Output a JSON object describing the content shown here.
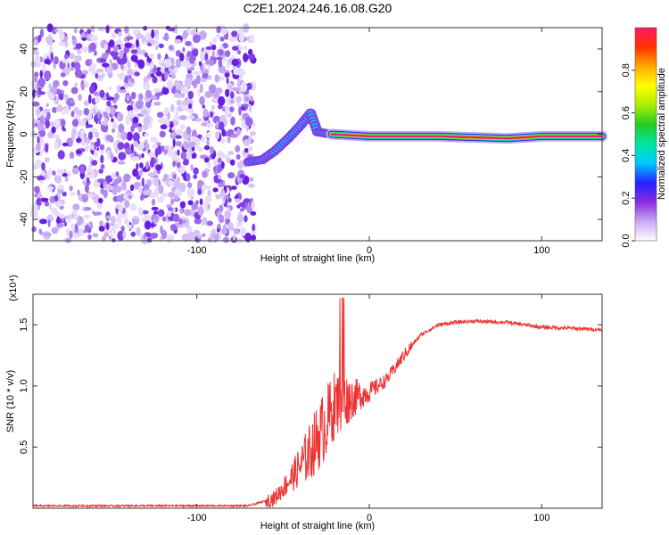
{
  "title": "C2E1.2024.246.16.08.G20",
  "chart_data": [
    {
      "type": "heatmap",
      "name": "spectrogram",
      "xlabel": "Height of straight line (km)",
      "ylabel": "Frequency (Hz)",
      "xlim": [
        -195,
        135
      ],
      "ylim": [
        -50,
        50
      ],
      "xticks": [
        -100,
        0,
        100
      ],
      "yticks": [
        -40,
        -20,
        0,
        20,
        40
      ],
      "noise_region_x": [
        -195,
        -67
      ],
      "ridge": [
        {
          "x": -70,
          "f": -13
        },
        {
          "x": -62,
          "f": -12
        },
        {
          "x": -55,
          "f": -8
        },
        {
          "x": -47,
          "f": -2
        },
        {
          "x": -40,
          "f": 4
        },
        {
          "x": -34,
          "f": 10
        },
        {
          "x": -30,
          "f": 1
        },
        {
          "x": -22,
          "f": 0
        },
        {
          "x": 0,
          "f": -1
        },
        {
          "x": 40,
          "f": -1
        },
        {
          "x": 80,
          "f": -2
        },
        {
          "x": 100,
          "f": -1
        },
        {
          "x": 135,
          "f": -1
        }
      ],
      "colorbar": {
        "label": "Normalized spectral amplitude",
        "range": [
          0,
          1
        ],
        "ticks": [
          "0.0",
          "0.2",
          "0.4",
          "0.6",
          "0.8"
        ],
        "colors": [
          "#ffffff",
          "#c9a8f5",
          "#8a2be2",
          "#2222ff",
          "#00c8ff",
          "#00e6a0",
          "#22cc22",
          "#aaee00",
          "#ffff00",
          "#ffaa00",
          "#ff3300",
          "#ff1a66"
        ]
      }
    },
    {
      "type": "line",
      "name": "snr",
      "xlabel": "Height of straight line (km)",
      "ylabel": "SNR (10 * v/v)",
      "multiplier": "(x10⁴)",
      "xlim": [
        -195,
        135
      ],
      "ylim": [
        0,
        1.75
      ],
      "xticks": [
        -100,
        0,
        100
      ],
      "yticks": [
        "0.5",
        "1.0",
        "1.5"
      ],
      "color": "#ee3333",
      "points": [
        {
          "x": -195,
          "y": 0.02
        },
        {
          "x": -70,
          "y": 0.02
        },
        {
          "x": -55,
          "y": 0.08
        },
        {
          "x": -45,
          "y": 0.25
        },
        {
          "x": -35,
          "y": 0.45
        },
        {
          "x": -25,
          "y": 0.7
        },
        {
          "x": -20,
          "y": 0.85
        },
        {
          "x": -10,
          "y": 0.9
        },
        {
          "x": 0,
          "y": 0.95
        },
        {
          "x": 10,
          "y": 1.05
        },
        {
          "x": 20,
          "y": 1.25
        },
        {
          "x": 30,
          "y": 1.42
        },
        {
          "x": 40,
          "y": 1.5
        },
        {
          "x": 50,
          "y": 1.52
        },
        {
          "x": 60,
          "y": 1.53
        },
        {
          "x": 80,
          "y": 1.52
        },
        {
          "x": 100,
          "y": 1.48
        },
        {
          "x": 120,
          "y": 1.47
        },
        {
          "x": 135,
          "y": 1.46
        }
      ]
    }
  ]
}
